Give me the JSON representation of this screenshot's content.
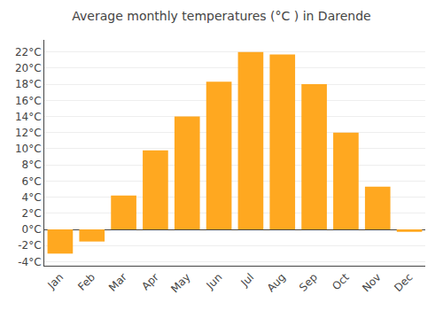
{
  "chart_data": {
    "type": "bar",
    "title": "Average monthly temperatures (°C ) in Darende",
    "categories": [
      "Jan",
      "Feb",
      "Mar",
      "Apr",
      "May",
      "Jun",
      "Jul",
      "Aug",
      "Sep",
      "Oct",
      "Nov",
      "Dec"
    ],
    "values": [
      -3.0,
      -1.5,
      4.2,
      9.8,
      14.0,
      18.3,
      22.0,
      21.7,
      18.0,
      12.0,
      5.3,
      -0.3
    ],
    "color": "#FFA820",
    "ylim": [
      -4.5,
      23.5
    ],
    "yticks": [
      {
        "value": -4,
        "label": "-4°C"
      },
      {
        "value": -2,
        "label": "-2°C"
      },
      {
        "value": 0,
        "label": "0°C"
      },
      {
        "value": 2,
        "label": "2°C"
      },
      {
        "value": 4,
        "label": "4°C"
      },
      {
        "value": 6,
        "label": "6°C"
      },
      {
        "value": 8,
        "label": "8°C"
      },
      {
        "value": 10,
        "label": "10°C"
      },
      {
        "value": 12,
        "label": "12°C"
      },
      {
        "value": 14,
        "label": "14°C"
      },
      {
        "value": 16,
        "label": "16°C"
      },
      {
        "value": 18,
        "label": "18°C"
      },
      {
        "value": 20,
        "label": "20°C"
      },
      {
        "value": 22,
        "label": "22°C"
      }
    ],
    "grid": true
  }
}
